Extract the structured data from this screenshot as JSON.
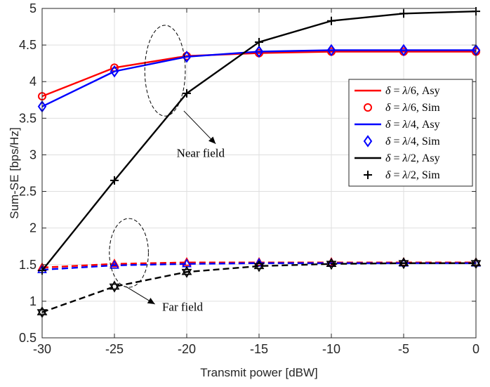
{
  "chart_data": {
    "type": "line",
    "title": "",
    "xlabel": "Transmit power [dBW]",
    "ylabel": "Sum-SE [bps/Hz]",
    "xlim": [
      -30,
      0
    ],
    "ylim": [
      0.5,
      5
    ],
    "xticks": [
      -30,
      -25,
      -20,
      -15,
      -10,
      -5,
      0
    ],
    "yticks": [
      0.5,
      1,
      1.5,
      2,
      2.5,
      3,
      3.5,
      4,
      4.5,
      5
    ],
    "xtick_labels": [
      "-30",
      "-25",
      "-20",
      "-15",
      "-10",
      "-5",
      "0"
    ],
    "ytick_labels": [
      "0.5",
      "1",
      "1.5",
      "2",
      "2.5",
      "3",
      "3.5",
      "4",
      "4.5",
      "5"
    ],
    "grid": true,
    "legend_position": "right",
    "x": [
      -30,
      -25,
      -20,
      -15,
      -10,
      -5,
      0
    ],
    "series": [
      {
        "name": "δ = λ/6, Asy",
        "delta": "λ/6",
        "kind": "Asy",
        "field": "near",
        "color": "#ff0000",
        "dash": "solid",
        "marker": "none",
        "values": [
          3.8,
          4.19,
          4.35,
          4.39,
          4.41,
          4.41,
          4.41
        ]
      },
      {
        "name": "δ = λ/6, Sim",
        "delta": "λ/6",
        "kind": "Sim",
        "field": "near",
        "color": "#ff0000",
        "dash": "none",
        "marker": "circle",
        "values": [
          3.8,
          4.19,
          4.35,
          4.39,
          4.41,
          4.41,
          4.41
        ]
      },
      {
        "name": "δ = λ/4, Asy",
        "delta": "λ/4",
        "kind": "Asy",
        "field": "near",
        "color": "#0000ff",
        "dash": "solid",
        "marker": "none",
        "values": [
          3.66,
          4.14,
          4.34,
          4.41,
          4.43,
          4.43,
          4.43
        ]
      },
      {
        "name": "δ = λ/4, Sim",
        "delta": "λ/4",
        "kind": "Sim",
        "field": "near",
        "color": "#0000ff",
        "dash": "none",
        "marker": "diamond",
        "values": [
          3.66,
          4.14,
          4.34,
          4.41,
          4.43,
          4.43,
          4.43
        ]
      },
      {
        "name": "δ = λ/2, Asy",
        "delta": "λ/2",
        "kind": "Asy",
        "field": "near",
        "color": "#000000",
        "dash": "solid",
        "marker": "none",
        "values": [
          1.42,
          2.65,
          3.84,
          4.54,
          4.83,
          4.93,
          4.96
        ]
      },
      {
        "name": "δ = λ/2, Sim",
        "delta": "λ/2",
        "kind": "Sim",
        "field": "near",
        "color": "#000000",
        "dash": "none",
        "marker": "plus",
        "values": [
          1.42,
          2.65,
          3.84,
          4.54,
          4.83,
          4.93,
          4.96
        ]
      },
      {
        "name": "δ = λ/6, Asy (far field)",
        "delta": "λ/6",
        "kind": "Asy",
        "field": "far",
        "color": "#ff0000",
        "dash": "dashed",
        "marker": "triangle",
        "values": [
          1.46,
          1.51,
          1.53,
          1.53,
          1.53,
          1.53,
          1.53
        ]
      },
      {
        "name": "δ = λ/4, Asy (far field)",
        "delta": "λ/4",
        "kind": "Asy",
        "field": "far",
        "color": "#0000ff",
        "dash": "dashed",
        "marker": "triangle",
        "values": [
          1.43,
          1.49,
          1.51,
          1.52,
          1.52,
          1.52,
          1.52
        ]
      },
      {
        "name": "δ = λ/2, Asy (far field)",
        "delta": "λ/2",
        "kind": "Asy",
        "field": "far",
        "color": "#000000",
        "dash": "dashed",
        "marker": "hexagram",
        "values": [
          0.85,
          1.2,
          1.4,
          1.48,
          1.51,
          1.52,
          1.52
        ]
      }
    ],
    "legend": [
      {
        "label": "δ = λ/6, Asy",
        "color": "#ff0000",
        "style": "line"
      },
      {
        "label": "δ = λ/6, Sim",
        "color": "#ff0000",
        "style": "circle"
      },
      {
        "label": "δ = λ/4, Asy",
        "color": "#0000ff",
        "style": "line"
      },
      {
        "label": "δ = λ/4, Sim",
        "color": "#0000ff",
        "style": "diamond"
      },
      {
        "label": "δ = λ/2, Asy",
        "color": "#000000",
        "style": "line"
      },
      {
        "label": "δ = λ/2, Sim",
        "color": "#000000",
        "style": "plus"
      }
    ],
    "annotations": [
      {
        "text": "Near field",
        "ellipse_center": [
          -21.5,
          4.15
        ],
        "ellipse_radii": [
          1.4,
          0.62
        ],
        "arrow_from": [
          -20.2,
          3.6
        ],
        "arrow_to": [
          -18.0,
          3.15
        ],
        "label_at": [
          -20.7,
          2.97
        ]
      },
      {
        "text": "Far field",
        "ellipse_center": [
          -24.0,
          1.66
        ],
        "ellipse_radii": [
          1.35,
          0.47
        ],
        "arrow_from": [
          -24.2,
          1.2
        ],
        "arrow_to": [
          -22.2,
          0.96
        ],
        "label_at": [
          -21.7,
          0.87
        ]
      }
    ]
  }
}
